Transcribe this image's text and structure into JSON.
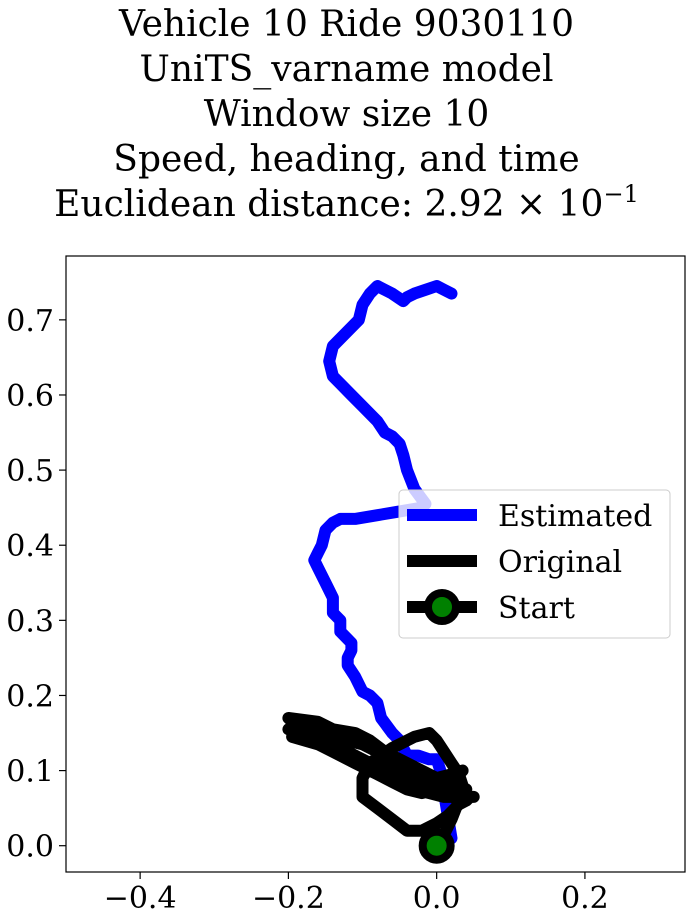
{
  "chart_data": {
    "type": "line",
    "title_lines": [
      "Vehicle 10 Ride 9030110",
      "UniTS_varname model",
      "Window size 10",
      "Speed, heading, and time"
    ],
    "metric_label": "Euclidean distance: ",
    "metric_mantissa": "2.92",
    "metric_base": "10",
    "metric_exponent": "−1",
    "xlim": [
      -0.5,
      0.335
    ],
    "ylim": [
      -0.035,
      0.785
    ],
    "xticks": [
      -0.4,
      -0.2,
      0.0,
      0.2
    ],
    "xtick_labels": [
      "−0.4",
      "−0.2",
      "0.0",
      "0.2"
    ],
    "yticks": [
      0.0,
      0.1,
      0.2,
      0.3,
      0.4,
      0.5,
      0.6,
      0.7
    ],
    "ytick_labels": [
      "0.0",
      "0.1",
      "0.2",
      "0.3",
      "0.4",
      "0.5",
      "0.6",
      "0.7"
    ],
    "legend_position": "center-right",
    "series": [
      {
        "name": "Estimated",
        "color": "#0000ff",
        "x": [
          0.02,
          0.015,
          0.01,
          0.005,
          0.0,
          -0.01,
          -0.025,
          -0.04,
          -0.05,
          -0.06,
          -0.075,
          -0.08,
          -0.09,
          -0.1,
          -0.11,
          -0.12,
          -0.12,
          -0.115,
          -0.115,
          -0.13,
          -0.13,
          -0.14,
          -0.14,
          -0.15,
          -0.16,
          -0.165,
          -0.16,
          -0.155,
          -0.15,
          -0.14,
          -0.13,
          -0.12,
          -0.11,
          -0.08,
          -0.05,
          -0.02,
          -0.015,
          -0.03,
          -0.04,
          -0.045,
          -0.05,
          -0.06,
          -0.07,
          -0.08,
          -0.1,
          -0.115,
          -0.13,
          -0.14,
          -0.145,
          -0.14,
          -0.13,
          -0.115,
          -0.105,
          -0.1,
          -0.09,
          -0.085,
          -0.08,
          -0.07,
          -0.06,
          -0.045,
          -0.04,
          -0.03,
          -0.015,
          0.0,
          0.01,
          0.02
        ],
        "y": [
          0.01,
          0.04,
          0.07,
          0.1,
          0.115,
          0.115,
          0.12,
          0.12,
          0.14,
          0.15,
          0.17,
          0.19,
          0.2,
          0.205,
          0.225,
          0.24,
          0.25,
          0.26,
          0.27,
          0.285,
          0.3,
          0.31,
          0.33,
          0.35,
          0.37,
          0.38,
          0.39,
          0.4,
          0.42,
          0.43,
          0.435,
          0.435,
          0.435,
          0.44,
          0.445,
          0.45,
          0.455,
          0.475,
          0.5,
          0.52,
          0.535,
          0.545,
          0.55,
          0.565,
          0.585,
          0.6,
          0.615,
          0.625,
          0.645,
          0.665,
          0.675,
          0.69,
          0.7,
          0.72,
          0.735,
          0.74,
          0.745,
          0.74,
          0.735,
          0.725,
          0.73,
          0.735,
          0.74,
          0.745,
          0.74,
          0.735
        ]
      },
      {
        "name": "Original",
        "color": "#000000",
        "x": [
          0.0,
          0.01,
          0.02,
          0.03,
          0.04,
          0.02,
          0.0,
          -0.02,
          -0.04,
          -0.07,
          -0.1,
          -0.13,
          -0.16,
          -0.2,
          -0.19,
          -0.15,
          -0.12,
          -0.09,
          -0.06,
          -0.04,
          -0.05,
          -0.07,
          -0.09,
          -0.11,
          -0.17,
          -0.2,
          -0.16,
          -0.12,
          -0.1,
          -0.08,
          -0.06,
          -0.04,
          -0.02,
          0.0,
          0.02,
          0.03,
          0.035,
          0.02,
          0.0,
          -0.02,
          -0.045,
          -0.07,
          -0.1,
          -0.12,
          -0.14,
          -0.16,
          -0.19,
          -0.195,
          -0.16,
          -0.13,
          -0.1,
          -0.06,
          -0.03,
          0.0,
          0.03,
          0.045,
          0.04,
          0.03,
          0.015,
          0.0,
          -0.02,
          -0.04,
          -0.06,
          -0.08,
          -0.1,
          -0.1,
          -0.09,
          -0.06,
          -0.03,
          -0.01,
          0.0,
          0.01,
          0.02,
          0.03,
          0.035,
          0.03,
          0.02,
          0.01,
          0.005,
          0.0,
          -0.01,
          -0.02,
          -0.03,
          -0.05,
          -0.07,
          -0.1,
          -0.14,
          -0.18,
          -0.195,
          -0.17,
          -0.14,
          -0.11,
          -0.08,
          -0.05,
          -0.03,
          -0.01,
          0.01,
          0.03,
          0.04,
          0.05
        ],
        "y": [
          0.0,
          0.015,
          0.035,
          0.06,
          0.075,
          0.085,
          0.09,
          0.1,
          0.11,
          0.12,
          0.135,
          0.15,
          0.165,
          0.17,
          0.16,
          0.14,
          0.125,
          0.11,
          0.1,
          0.095,
          0.11,
          0.125,
          0.14,
          0.15,
          0.16,
          0.155,
          0.14,
          0.12,
          0.105,
          0.095,
          0.085,
          0.075,
          0.07,
          0.075,
          0.085,
          0.095,
          0.1,
          0.095,
          0.09,
          0.085,
          0.09,
          0.1,
          0.11,
          0.12,
          0.13,
          0.14,
          0.15,
          0.145,
          0.135,
          0.125,
          0.11,
          0.1,
          0.09,
          0.08,
          0.07,
          0.065,
          0.06,
          0.055,
          0.04,
          0.03,
          0.02,
          0.02,
          0.035,
          0.05,
          0.065,
          0.09,
          0.11,
          0.13,
          0.145,
          0.15,
          0.14,
          0.125,
          0.11,
          0.095,
          0.08,
          0.07,
          0.065,
          0.07,
          0.075,
          0.08,
          0.085,
          0.095,
          0.105,
          0.115,
          0.125,
          0.135,
          0.145,
          0.155,
          0.15,
          0.14,
          0.125,
          0.11,
          0.095,
          0.085,
          0.075,
          0.07,
          0.065,
          0.065,
          0.065,
          0.065
        ]
      }
    ],
    "start_point": {
      "name": "Start",
      "x": 0.0,
      "y": 0.0,
      "outer_color": "#000000",
      "inner_color": "#008000"
    },
    "legend": [
      "Estimated",
      "Original",
      "Start"
    ]
  }
}
